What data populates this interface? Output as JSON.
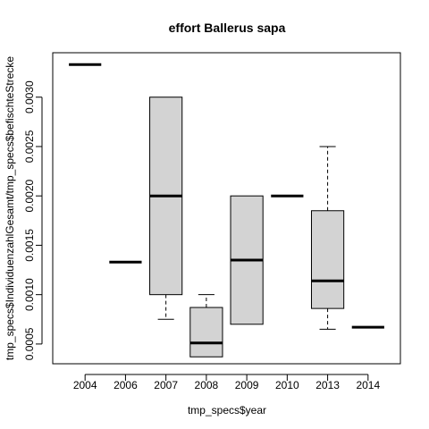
{
  "chart_data": {
    "type": "boxplot",
    "title": "effort Ballerus sapa",
    "xlabel": "tmp_specs$year",
    "ylabel": "tmp_specs$IndividuenzahlGesamt/tmp_specs$befischteStrecke",
    "ylim": [
      0.0003,
      0.00345
    ],
    "yticks": [
      "0.0005",
      "0.0010",
      "0.0015",
      "0.0020",
      "0.0025",
      "0.0030"
    ],
    "categories": [
      "2004",
      "2006",
      "2007",
      "2008",
      "2009",
      "2010",
      "2013",
      "2014"
    ],
    "boxes": [
      {
        "category": "2004",
        "min": 0.00333,
        "q1": 0.00333,
        "median": 0.00333,
        "q3": 0.00333,
        "max": 0.00333
      },
      {
        "category": "2006",
        "min": 0.00133,
        "q1": 0.00133,
        "median": 0.00133,
        "q3": 0.00133,
        "max": 0.00133
      },
      {
        "category": "2007",
        "min": 0.00075,
        "q1": 0.001,
        "median": 0.002,
        "q3": 0.003,
        "max": 0.003
      },
      {
        "category": "2008",
        "min": 0.00037,
        "q1": 0.00037,
        "median": 0.00051,
        "q3": 0.00087,
        "max": 0.001
      },
      {
        "category": "2009",
        "min": 0.0007,
        "q1": 0.0007,
        "median": 0.00135,
        "q3": 0.002,
        "max": 0.002
      },
      {
        "category": "2010",
        "min": 0.002,
        "q1": 0.002,
        "median": 0.002,
        "q3": 0.002,
        "max": 0.002
      },
      {
        "category": "2013",
        "min": 0.00065,
        "q1": 0.00086,
        "median": 0.00114,
        "q3": 0.00185,
        "max": 0.0025
      },
      {
        "category": "2014",
        "min": 0.00067,
        "q1": 0.00067,
        "median": 0.00067,
        "q3": 0.00067,
        "max": 0.00067
      }
    ],
    "colors": {
      "box_fill": "#d3d3d3",
      "stroke": "#000000"
    }
  }
}
